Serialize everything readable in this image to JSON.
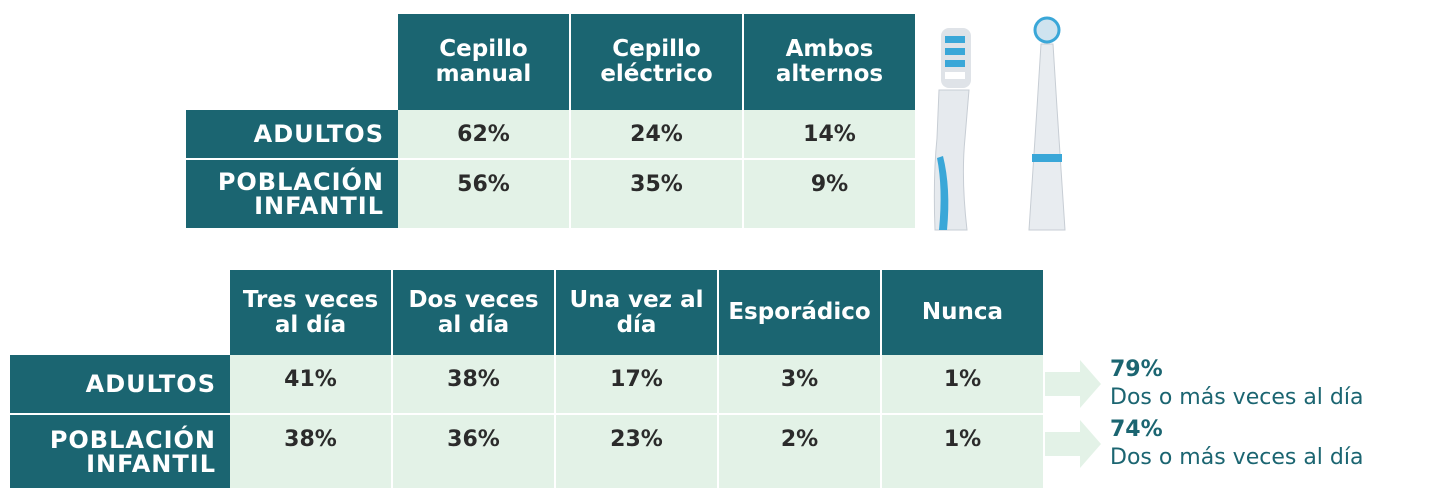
{
  "table1": {
    "headers": [
      "Cepillo manual",
      "Cepillo eléctrico",
      "Ambos alternos"
    ],
    "rows": [
      {
        "label": "ADULTOS",
        "cells": [
          "62%",
          "24%",
          "14%"
        ]
      },
      {
        "label": "POBLACIÓN INFANTIL",
        "cells": [
          "56%",
          "35%",
          "9%"
        ]
      }
    ]
  },
  "table2": {
    "headers": [
      "Tres veces al día",
      "Dos veces al día",
      "Una vez al día",
      "Esporádico",
      "Nunca"
    ],
    "rows": [
      {
        "label": "ADULTOS",
        "cells": [
          "41%",
          "38%",
          "17%",
          "3%",
          "1%"
        ],
        "summary": {
          "value": "79%",
          "text": "Dos o más veces al día"
        }
      },
      {
        "label": "POBLACIÓN INFANTIL",
        "cells": [
          "38%",
          "36%",
          "23%",
          "2%",
          "1%"
        ],
        "summary": {
          "value": "74%",
          "text": "Dos o más veces al día"
        }
      }
    ]
  }
}
